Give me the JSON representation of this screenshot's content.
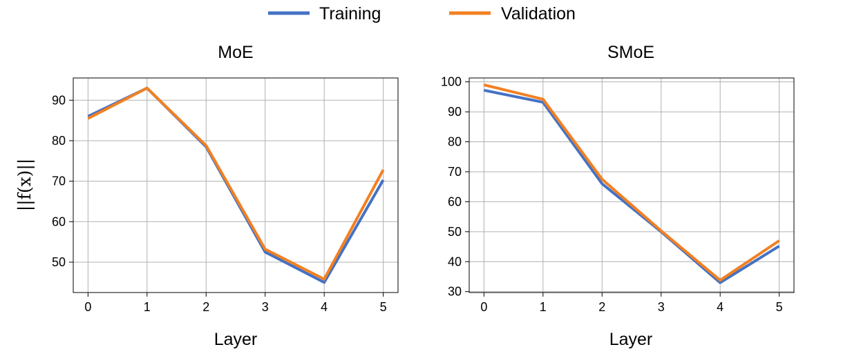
{
  "legend": [
    {
      "label": "Training",
      "color": "#4472c4"
    },
    {
      "label": "Validation",
      "color": "#f28022"
    }
  ],
  "shared_ylabel": "||f(x)||",
  "chart_data": [
    {
      "type": "line",
      "title": "MoE",
      "xlabel": "Layer",
      "ylabel": "||f(x)||",
      "x": [
        0,
        1,
        2,
        3,
        4,
        5
      ],
      "xticks": [
        "0",
        "1",
        "2",
        "3",
        "4",
        "5"
      ],
      "yticks": [
        50,
        60,
        70,
        80,
        90
      ],
      "xlim": [
        -0.25,
        5.25
      ],
      "ylim": [
        42.5,
        95.5
      ],
      "grid": true,
      "series": [
        {
          "name": "Training",
          "color": "#4472c4",
          "values": [
            86.0,
            93.0,
            78.5,
            52.5,
            45.0,
            70.3
          ]
        },
        {
          "name": "Validation",
          "color": "#f28022",
          "values": [
            85.5,
            93.0,
            78.8,
            53.2,
            45.8,
            72.8
          ]
        }
      ]
    },
    {
      "type": "line",
      "title": "SMoE",
      "xlabel": "Layer",
      "ylabel": "",
      "x": [
        0,
        1,
        2,
        3,
        4,
        5
      ],
      "xticks": [
        "0",
        "1",
        "2",
        "3",
        "4",
        "5"
      ],
      "yticks": [
        30,
        40,
        50,
        60,
        70,
        80,
        90,
        100
      ],
      "xlim": [
        -0.25,
        5.25
      ],
      "ylim": [
        29.7,
        101.3
      ],
      "grid": true,
      "series": [
        {
          "name": "Training",
          "color": "#4472c4",
          "values": [
            97.2,
            93.2,
            66.0,
            50.0,
            33.0,
            45.2
          ]
        },
        {
          "name": "Validation",
          "color": "#f28022",
          "values": [
            99.0,
            94.2,
            67.5,
            50.3,
            33.8,
            47.0
          ]
        }
      ]
    }
  ]
}
